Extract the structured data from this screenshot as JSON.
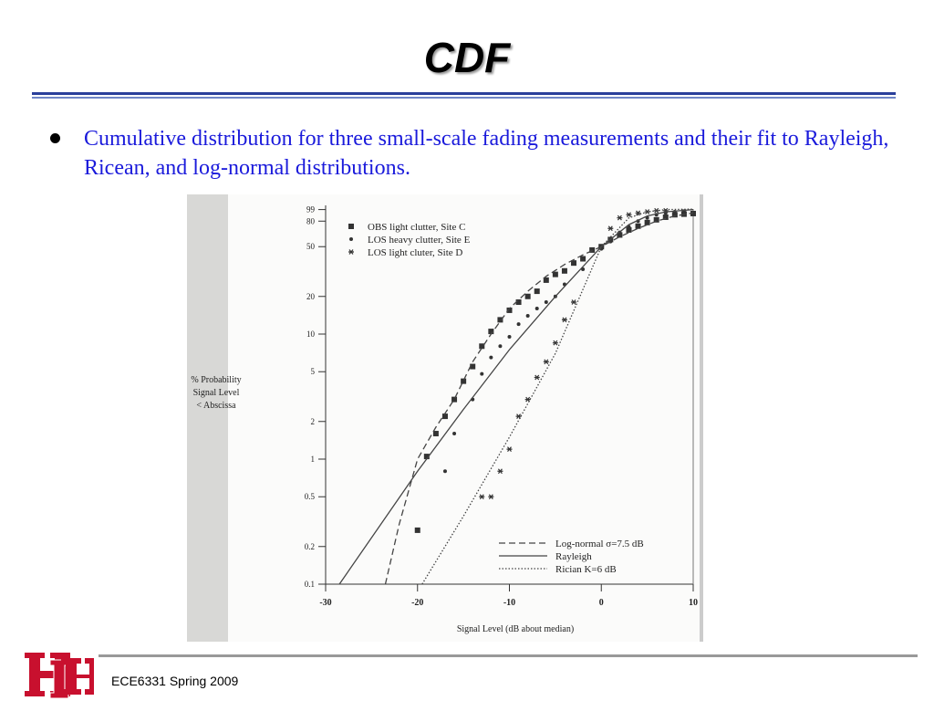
{
  "slide": {
    "title": "CDF",
    "bullet": "Cumulative distribution for three small-scale fading measurements and their fit to Rayleigh, Ricean, and log-normal distributions.",
    "footer": "ECE6331 Spring 2009"
  },
  "chart_data": {
    "type": "scatter",
    "xlabel": "Signal Level (dB about median)",
    "ylabel": [
      "% Probability",
      "Signal Level",
      "< Abscissa"
    ],
    "xlim": [
      -30,
      10
    ],
    "xticks": [
      -30,
      -20,
      -10,
      0,
      10
    ],
    "ylim": [
      0.1,
      100
    ],
    "yticks": [
      0.1,
      0.2,
      0.5,
      1,
      2,
      5,
      10,
      20,
      50,
      80,
      99
    ],
    "log_y": true,
    "series": [
      {
        "name": "OBS light clutter, Site C",
        "marker": "square",
        "color": "#333333",
        "x": [
          -20,
          -19,
          -18,
          -17,
          -16,
          -15,
          -14,
          -13,
          -12,
          -11,
          -10,
          -9,
          -8,
          -7,
          -6,
          -5,
          -4,
          -3,
          -2,
          -1,
          0,
          1,
          2,
          3,
          4,
          5,
          6,
          7,
          8,
          9,
          10
        ],
        "values": [
          0.27,
          1.05,
          1.6,
          2.2,
          3,
          4.2,
          5.5,
          8,
          10.5,
          13,
          15.5,
          18,
          20,
          22,
          27,
          30,
          32,
          37,
          40,
          47,
          50,
          57,
          62,
          68,
          73,
          78,
          82,
          86,
          90,
          91,
          92
        ]
      },
      {
        "name": "LOS heavy clutter, Site E",
        "marker": "circle",
        "color": "#333333",
        "x": [
          -17,
          -16,
          -14,
          -13,
          -12,
          -11,
          -10,
          -9,
          -8,
          -7,
          -6,
          -5,
          -4,
          -2,
          0,
          1,
          2,
          3,
          4,
          5,
          6,
          7,
          8,
          9
        ],
        "values": [
          0.8,
          1.6,
          3,
          4.8,
          6.5,
          8,
          9.5,
          12,
          14,
          16,
          18,
          20,
          25,
          33,
          48,
          55,
          65,
          72,
          80,
          85,
          90,
          93,
          95,
          96
        ]
      },
      {
        "name": "LOS light cluter, Site D",
        "marker": "star",
        "color": "#333333",
        "x": [
          -13,
          -12,
          -11,
          -10,
          -9,
          -8,
          -7,
          -6,
          -5,
          -4,
          -3,
          0,
          1,
          2,
          3,
          4,
          5,
          6,
          7,
          9
        ],
        "values": [
          0.5,
          0.5,
          0.8,
          1.2,
          2.2,
          3,
          4.5,
          6,
          8.5,
          13,
          18,
          50,
          70,
          85,
          90,
          93,
          95,
          97,
          97,
          95
        ]
      },
      {
        "name": "Log-normal σ=7.5 dB",
        "line": "dashed",
        "color": "#444444",
        "x": [
          -23.5,
          -22,
          -20,
          -18,
          -16,
          -14,
          -12,
          -10,
          -8,
          -6,
          -4,
          -2,
          0,
          2,
          4,
          6,
          8,
          10
        ],
        "values": [
          0.1,
          0.3,
          1,
          1.8,
          3,
          6,
          10,
          16,
          22,
          29,
          36,
          43,
          50,
          60,
          70,
          80,
          88,
          93
        ]
      },
      {
        "name": "Rayleigh",
        "line": "solid",
        "color": "#444444",
        "x": [
          -28.5,
          -20,
          -15,
          -10,
          -5,
          0,
          3,
          5,
          7,
          10
        ],
        "values": [
          0.1,
          0.8,
          2.5,
          7.5,
          20,
          50,
          75,
          88,
          95,
          99
        ]
      },
      {
        "name": "Rician K=6 dB",
        "line": "dotted",
        "color": "#444444",
        "x": [
          -19.5,
          -15,
          -10,
          -5,
          0,
          3,
          5,
          7,
          10
        ],
        "values": [
          0.1,
          0.35,
          1.5,
          7,
          50,
          85,
          95,
          99,
          99.9
        ]
      }
    ]
  }
}
